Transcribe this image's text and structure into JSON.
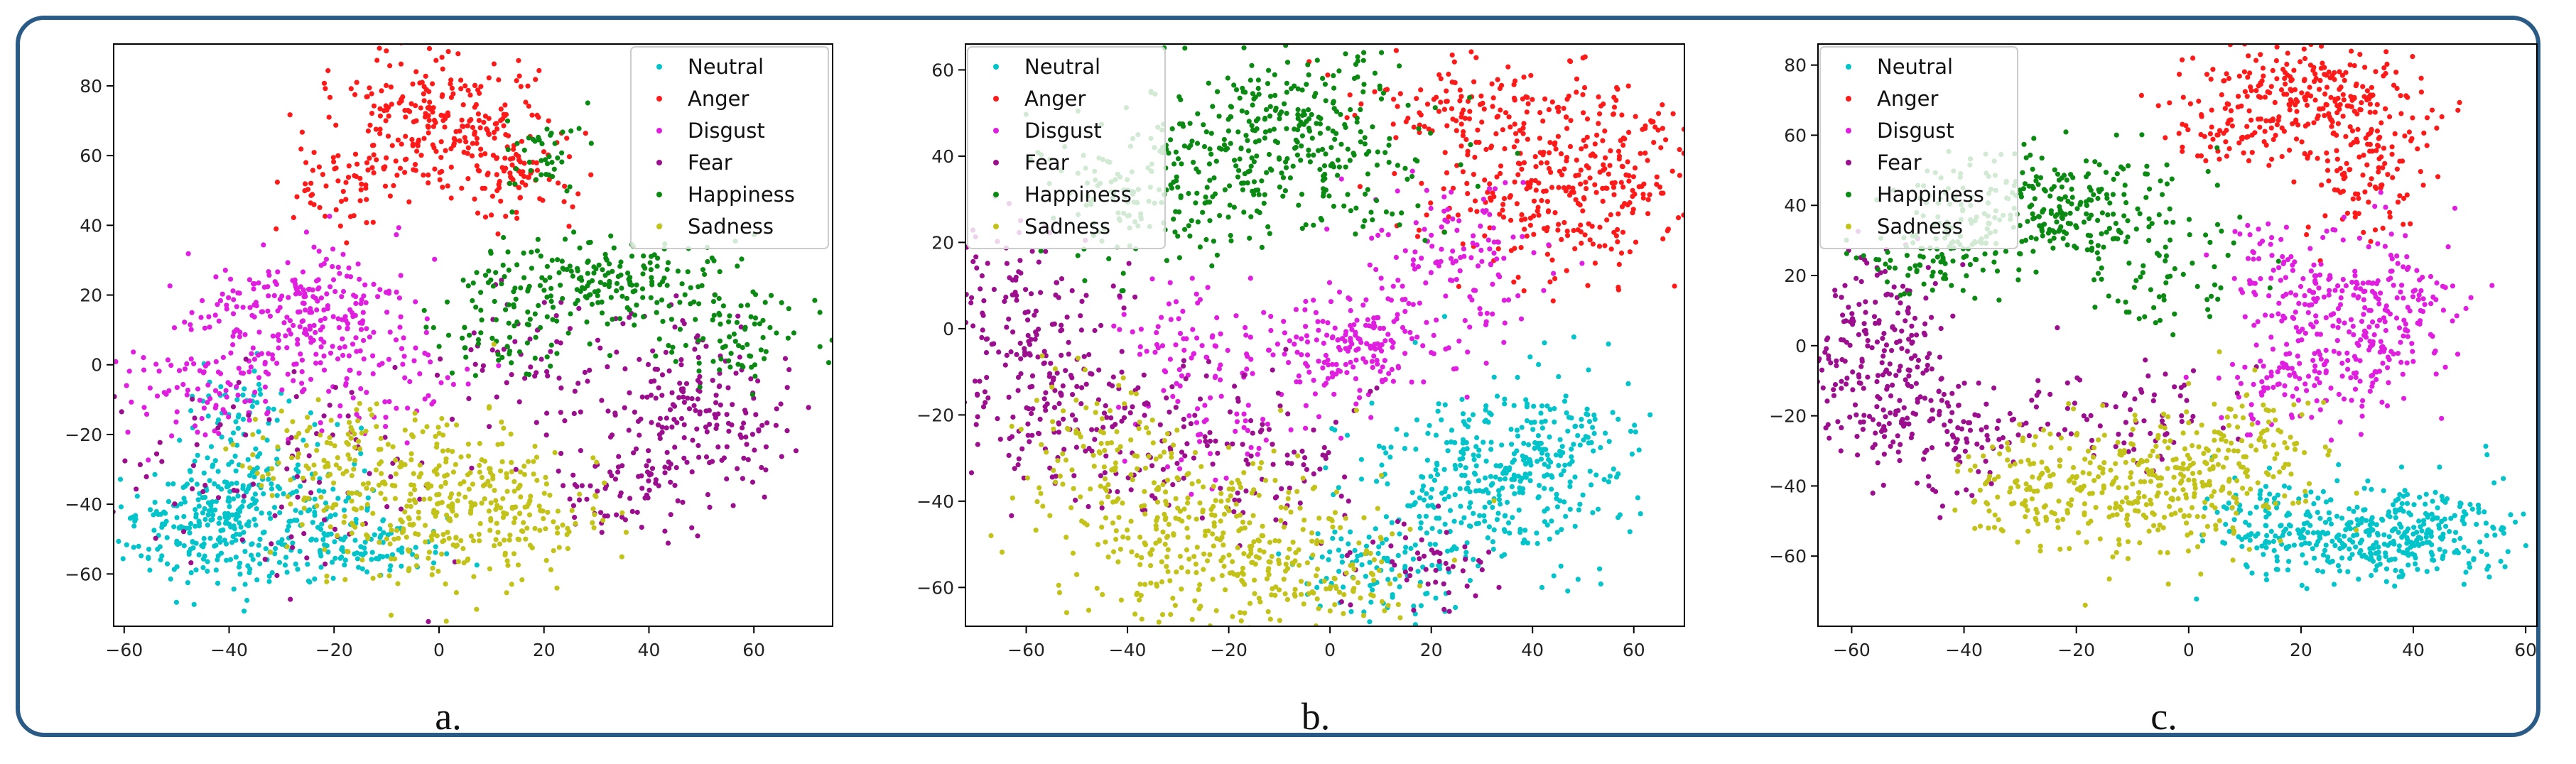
{
  "figure": {
    "captions": [
      "a.",
      "b.",
      "c."
    ]
  },
  "legend": {
    "entries": [
      "Neutral",
      "Anger",
      "Disgust",
      "Fear",
      "Happiness",
      "Sadness"
    ],
    "colors": [
      "#00c4c9",
      "#ff1a1a",
      "#e01ee0",
      "#9b0f8e",
      "#0a8a12",
      "#c2c218"
    ]
  },
  "chart_data": [
    {
      "type": "scatter",
      "title": "",
      "caption": "a.",
      "xlim": [
        -62,
        75
      ],
      "ylim": [
        -75,
        92
      ],
      "xticks": [
        -60,
        -40,
        -20,
        0,
        20,
        40,
        60
      ],
      "yticks": [
        -60,
        -40,
        -20,
        0,
        20,
        40,
        60,
        80
      ],
      "legend_position": "top-right",
      "series": [
        {
          "name": "Neutral",
          "clusters": [
            [
              -42,
              -45,
              9,
              9,
              300
            ],
            [
              -22,
              -45,
              5,
              10,
              90
            ],
            [
              -38,
              -12,
              6,
              8,
              60
            ],
            [
              -10,
              -52,
              6,
              4,
              60
            ]
          ]
        },
        {
          "name": "Anger",
          "clusters": [
            [
              0,
              70,
              10,
              10,
              260
            ],
            [
              12,
              55,
              6,
              6,
              80
            ],
            [
              -20,
              50,
              5,
              6,
              50
            ]
          ]
        },
        {
          "name": "Disgust",
          "clusters": [
            [
              -27,
              15,
              10,
              10,
              250
            ],
            [
              -45,
              -5,
              8,
              9,
              90
            ],
            [
              -10,
              -5,
              8,
              8,
              60
            ]
          ]
        },
        {
          "name": "Fear",
          "clusters": [
            [
              50,
              -15,
              9,
              12,
              180
            ],
            [
              35,
              -35,
              6,
              7,
              70
            ],
            [
              -30,
              -30,
              15,
              15,
              90
            ],
            [
              20,
              0,
              10,
              10,
              70
            ]
          ]
        },
        {
          "name": "Happiness",
          "clusters": [
            [
              30,
              25,
              12,
              6,
              190
            ],
            [
              55,
              10,
              7,
              7,
              90
            ],
            [
              12,
              10,
              8,
              8,
              60
            ],
            [
              20,
              60,
              6,
              6,
              40
            ]
          ]
        },
        {
          "name": "Sadness",
          "clusters": [
            [
              0,
              -40,
              12,
              12,
              320
            ],
            [
              -20,
              -25,
              8,
              8,
              90
            ],
            [
              18,
              -45,
              6,
              6,
              60
            ]
          ]
        }
      ]
    },
    {
      "type": "scatter",
      "title": "",
      "caption": "b.",
      "xlim": [
        -72,
        70
      ],
      "ylim": [
        -69,
        66
      ],
      "xticks": [
        -60,
        -40,
        -20,
        0,
        20,
        40,
        60
      ],
      "yticks": [
        -60,
        -40,
        -20,
        0,
        20,
        40,
        60
      ],
      "legend_position": "top-left",
      "series": [
        {
          "name": "Neutral",
          "clusters": [
            [
              30,
              -35,
              13,
              10,
              320
            ],
            [
              10,
              -55,
              8,
              6,
              90
            ],
            [
              45,
              -25,
              8,
              8,
              90
            ]
          ]
        },
        {
          "name": "Anger",
          "clusters": [
            [
              45,
              35,
              12,
              12,
              320
            ],
            [
              25,
              50,
              10,
              6,
              90
            ],
            [
              60,
              40,
              5,
              8,
              50
            ]
          ]
        },
        {
          "name": "Disgust",
          "clusters": [
            [
              5,
              -5,
              8,
              6,
              160
            ],
            [
              25,
              15,
              10,
              10,
              130
            ],
            [
              -20,
              -15,
              10,
              10,
              90
            ],
            [
              -30,
              0,
              6,
              6,
              40
            ]
          ]
        },
        {
          "name": "Fear",
          "clusters": [
            [
              -60,
              -5,
              8,
              15,
              220
            ],
            [
              -40,
              -25,
              8,
              8,
              80
            ],
            [
              -15,
              -30,
              10,
              10,
              90
            ],
            [
              20,
              -55,
              8,
              6,
              50
            ]
          ]
        },
        {
          "name": "Happiness",
          "clusters": [
            [
              -10,
              40,
              15,
              10,
              320
            ],
            [
              -40,
              30,
              10,
              8,
              110
            ],
            [
              -5,
              55,
              8,
              6,
              60
            ]
          ]
        },
        {
          "name": "Sadness",
          "clusters": [
            [
              -25,
              -48,
              15,
              10,
              320
            ],
            [
              -45,
              -30,
              8,
              10,
              90
            ],
            [
              0,
              -60,
              10,
              6,
              90
            ]
          ]
        }
      ]
    },
    {
      "type": "scatter",
      "title": "",
      "caption": "c.",
      "xlim": [
        -66,
        62
      ],
      "ylim": [
        -80,
        86
      ],
      "xticks": [
        -60,
        -40,
        -20,
        0,
        20,
        40,
        60
      ],
      "yticks": [
        -60,
        -40,
        -20,
        0,
        20,
        40,
        60,
        80
      ],
      "legend_position": "top-left",
      "series": [
        {
          "name": "Neutral",
          "clusters": [
            [
              35,
              -55,
              12,
              6,
              300
            ],
            [
              15,
              -50,
              6,
              8,
              90
            ],
            [
              45,
              -45,
              6,
              6,
              60
            ]
          ]
        },
        {
          "name": "Anger",
          "clusters": [
            [
              20,
              70,
              10,
              8,
              280
            ],
            [
              32,
              50,
              5,
              10,
              100
            ],
            [
              5,
              60,
              5,
              5,
              40
            ]
          ]
        },
        {
          "name": "Disgust",
          "clusters": [
            [
              30,
              10,
              9,
              12,
              280
            ],
            [
              20,
              -10,
              8,
              8,
              90
            ],
            [
              15,
              25,
              6,
              6,
              40
            ]
          ]
        },
        {
          "name": "Fear",
          "clusters": [
            [
              -55,
              -5,
              6,
              14,
              240
            ],
            [
              -40,
              -25,
              8,
              8,
              90
            ],
            [
              -10,
              -20,
              10,
              8,
              70
            ]
          ]
        },
        {
          "name": "Happiness",
          "clusters": [
            [
              -25,
              40,
              12,
              8,
              280
            ],
            [
              -45,
              25,
              6,
              6,
              90
            ],
            [
              -5,
              20,
              8,
              8,
              60
            ]
          ]
        },
        {
          "name": "Sadness",
          "clusters": [
            [
              -5,
              -40,
              12,
              10,
              320
            ],
            [
              -30,
              -40,
              8,
              8,
              90
            ],
            [
              10,
              -25,
              6,
              8,
              60
            ]
          ]
        }
      ]
    }
  ]
}
